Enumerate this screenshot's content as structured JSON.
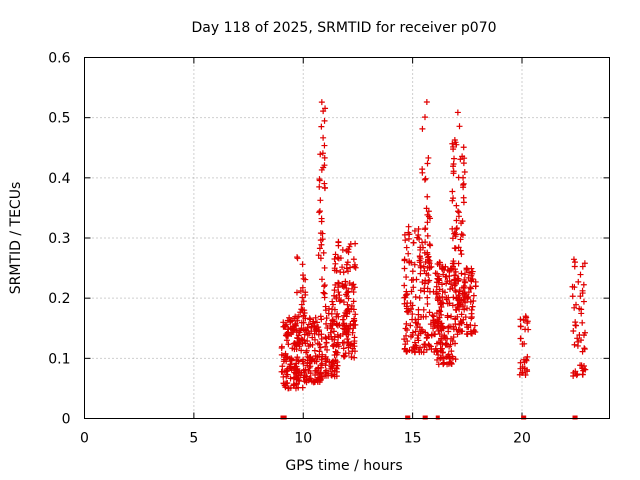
{
  "chart_data": {
    "type": "scatter",
    "title": "Day 118 of 2025, SRMTID for receiver p070",
    "xlabel": "GPS time / hours",
    "ylabel": "SRMTID / TECUs",
    "xlim": [
      0,
      24
    ],
    "ylim": [
      0,
      0.6
    ],
    "xticks": [
      "0",
      "5",
      "10",
      "15",
      "20"
    ],
    "xtick_values": [
      0,
      5,
      10,
      15,
      20
    ],
    "yticks": [
      "0",
      "0.1",
      "0.2",
      "0.3",
      "0.4",
      "0.5",
      "0.6"
    ],
    "ytick_values": [
      0,
      0.1,
      0.2,
      0.3,
      0.4,
      0.5,
      0.6
    ],
    "grid": true,
    "marker": "+",
    "color": "#e00000",
    "series": [
      {
        "name": "SRMTID",
        "clusters": [
          {
            "x0": 9.0,
            "x1": 10.0,
            "ylo": 0.05,
            "yhi": 0.17,
            "n": 140
          },
          {
            "x0": 9.7,
            "x1": 10.1,
            "ylo": 0.12,
            "yhi": 0.27,
            "n": 30
          },
          {
            "x0": 10.0,
            "x1": 10.9,
            "ylo": 0.06,
            "yhi": 0.17,
            "n": 120
          },
          {
            "x0": 10.7,
            "x1": 11.0,
            "ylo": 0.2,
            "yhi": 0.53,
            "n": 40
          },
          {
            "x0": 11.0,
            "x1": 11.6,
            "ylo": 0.07,
            "yhi": 0.2,
            "n": 80
          },
          {
            "x0": 11.4,
            "x1": 12.4,
            "ylo": 0.12,
            "yhi": 0.3,
            "n": 110
          },
          {
            "x0": 11.8,
            "x1": 12.4,
            "ylo": 0.1,
            "yhi": 0.16,
            "n": 30
          },
          {
            "x0": 14.6,
            "x1": 15.4,
            "ylo": 0.11,
            "yhi": 0.32,
            "n": 110
          },
          {
            "x0": 15.4,
            "x1": 15.8,
            "ylo": 0.26,
            "yhi": 0.54,
            "n": 30
          },
          {
            "x0": 15.4,
            "x1": 16.4,
            "ylo": 0.11,
            "yhi": 0.28,
            "n": 100
          },
          {
            "x0": 16.1,
            "x1": 17.0,
            "ylo": 0.09,
            "yhi": 0.26,
            "n": 120
          },
          {
            "x0": 16.8,
            "x1": 17.4,
            "ylo": 0.18,
            "yhi": 0.51,
            "n": 70
          },
          {
            "x0": 17.0,
            "x1": 17.9,
            "ylo": 0.14,
            "yhi": 0.25,
            "n": 90
          },
          {
            "x0": 19.9,
            "x1": 20.3,
            "ylo": 0.07,
            "yhi": 0.17,
            "n": 30
          },
          {
            "x0": 22.3,
            "x1": 22.9,
            "ylo": 0.07,
            "yhi": 0.27,
            "n": 50
          }
        ],
        "baseline_x": [
          9.05,
          9.1,
          9.15,
          14.75,
          14.8,
          15.55,
          15.6,
          16.15,
          20.05,
          20.1,
          22.4,
          22.45
        ]
      }
    ]
  }
}
